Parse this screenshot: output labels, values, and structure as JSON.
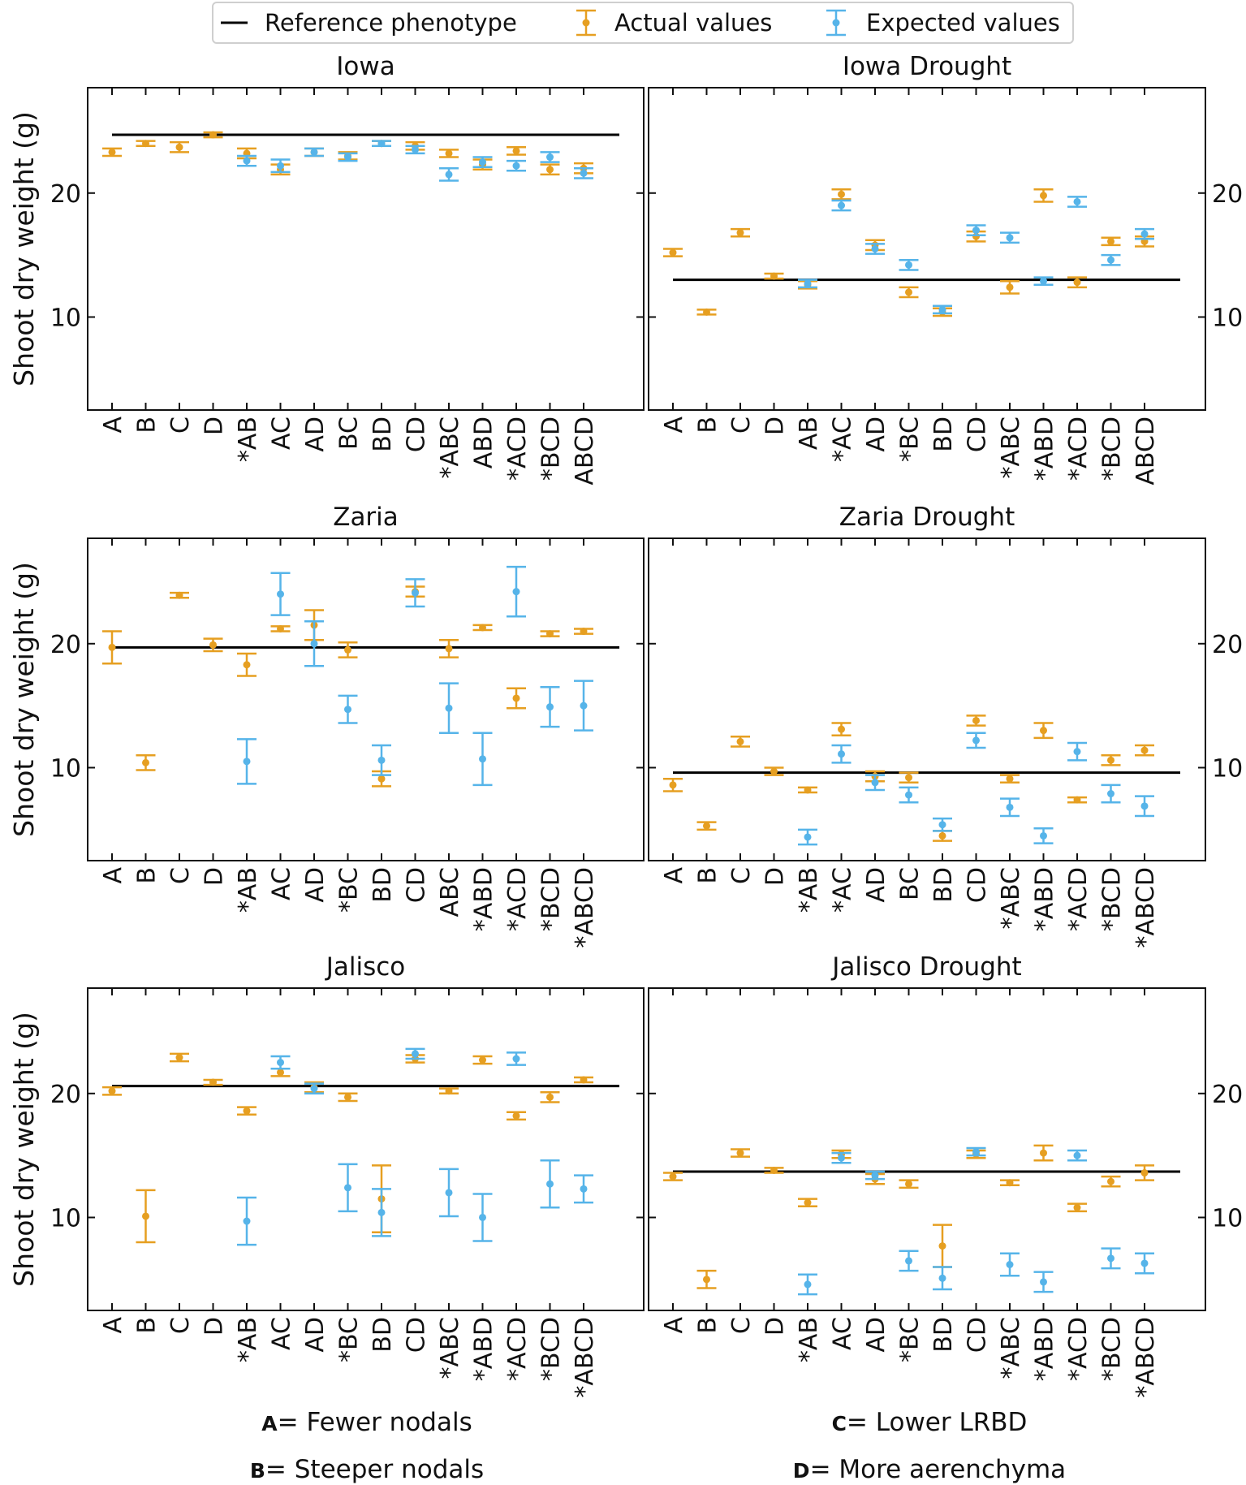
{
  "chart_data": {
    "type": "errorbar-grid",
    "ylabel": "Shoot dry weight (g)",
    "ylim": [
      2.5,
      28.5
    ],
    "yticks": [
      10,
      20
    ],
    "legend": {
      "position": "top-center",
      "items": [
        {
          "label": "Reference phenotype",
          "kind": "line",
          "color": "#000000"
        },
        {
          "label": "Actual values",
          "kind": "errorbar",
          "color": "#E69F21"
        },
        {
          "label": "Expected values",
          "kind": "errorbar",
          "color": "#56B4E9"
        }
      ]
    },
    "colors": {
      "actual": "#E69F21",
      "expected": "#56B4E9",
      "reference": "#000000"
    },
    "panels": [
      {
        "title": "Iowa",
        "reference": 24.7,
        "categories": [
          "A",
          "B",
          "C",
          "D",
          "*AB",
          "AC",
          "AD",
          "BC",
          "BD",
          "CD",
          "*ABC",
          "ABD",
          "*ACD",
          "*BCD",
          "ABCD"
        ],
        "actual": [
          [
            23.3,
            0.3
          ],
          [
            24.0,
            0.2
          ],
          [
            23.7,
            0.4
          ],
          [
            24.7,
            0.2
          ],
          [
            23.2,
            0.4
          ],
          [
            21.9,
            0.4
          ],
          [
            23.3,
            0.3
          ],
          [
            23.0,
            0.3
          ],
          [
            24.0,
            0.2
          ],
          [
            23.8,
            0.3
          ],
          [
            23.2,
            0.3
          ],
          [
            22.3,
            0.4
          ],
          [
            23.4,
            0.3
          ],
          [
            21.9,
            0.4
          ],
          [
            22.0,
            0.4
          ]
        ],
        "expected": [
          null,
          null,
          null,
          null,
          [
            22.6,
            0.4
          ],
          [
            22.2,
            0.5
          ],
          [
            23.3,
            0.3
          ],
          [
            22.9,
            0.3
          ],
          [
            24.0,
            0.2
          ],
          [
            23.5,
            0.3
          ],
          [
            21.5,
            0.5
          ],
          [
            22.5,
            0.4
          ],
          [
            22.2,
            0.4
          ],
          [
            22.9,
            0.4
          ],
          [
            21.6,
            0.4
          ]
        ]
      },
      {
        "title": "Iowa Drought",
        "reference": 13.0,
        "categories": [
          "A",
          "B",
          "C",
          "D",
          "AB",
          "*AC",
          "AD",
          "*BC",
          "BD",
          "CD",
          "*ABC",
          "*ABD",
          "*ACD",
          "*BCD",
          "ABCD"
        ],
        "actual": [
          [
            15.2,
            0.3
          ],
          [
            10.4,
            0.2
          ],
          [
            16.8,
            0.3
          ],
          [
            13.3,
            0.2
          ],
          [
            12.6,
            0.3
          ],
          [
            19.9,
            0.4
          ],
          [
            15.8,
            0.4
          ],
          [
            12.0,
            0.4
          ],
          [
            10.4,
            0.3
          ],
          [
            16.5,
            0.4
          ],
          [
            12.4,
            0.5
          ],
          [
            19.8,
            0.5
          ],
          [
            12.8,
            0.4
          ],
          [
            16.1,
            0.3
          ],
          [
            16.1,
            0.4
          ]
        ],
        "expected": [
          null,
          null,
          null,
          null,
          [
            12.7,
            0.3
          ],
          [
            19.0,
            0.4
          ],
          [
            15.5,
            0.4
          ],
          [
            14.2,
            0.4
          ],
          [
            10.6,
            0.3
          ],
          [
            17.0,
            0.4
          ],
          [
            16.4,
            0.4
          ],
          [
            12.9,
            0.3
          ],
          [
            19.3,
            0.4
          ],
          [
            14.6,
            0.4
          ],
          [
            16.7,
            0.4
          ]
        ]
      },
      {
        "title": "Zaria",
        "reference": 19.7,
        "categories": [
          "A",
          "B",
          "C",
          "D",
          "*AB",
          "AC",
          "AD",
          "*BC",
          "BD",
          "CD",
          "ABC",
          "*ABD",
          "*ACD",
          "*BCD",
          "*ABCD"
        ],
        "actual": [
          [
            19.7,
            1.3
          ],
          [
            10.4,
            0.6
          ],
          [
            23.9,
            0.2
          ],
          [
            19.9,
            0.5
          ],
          [
            18.3,
            0.9
          ],
          [
            21.2,
            0.2
          ],
          [
            21.5,
            1.2
          ],
          [
            19.5,
            0.6
          ],
          [
            9.1,
            0.6
          ],
          [
            24.2,
            0.4
          ],
          [
            19.6,
            0.7
          ],
          [
            21.3,
            0.2
          ],
          [
            15.6,
            0.8
          ],
          [
            20.8,
            0.2
          ],
          [
            21.0,
            0.2
          ]
        ],
        "expected": [
          null,
          null,
          null,
          null,
          [
            10.5,
            1.8
          ],
          [
            24.0,
            1.7
          ],
          [
            20.0,
            1.8
          ],
          [
            14.7,
            1.1
          ],
          [
            10.6,
            1.2
          ],
          [
            24.1,
            1.1
          ],
          [
            14.8,
            2.0
          ],
          [
            10.7,
            2.1
          ],
          [
            24.2,
            2.0
          ],
          [
            14.9,
            1.6
          ],
          [
            15.0,
            2.0
          ]
        ]
      },
      {
        "title": "Zaria Drought",
        "reference": 9.6,
        "categories": [
          "A",
          "B",
          "C",
          "D",
          "*AB",
          "*AC",
          "AD",
          "BC",
          "BD",
          "CD",
          "*ABC",
          "*ABD",
          "*ACD",
          "*BCD",
          "*ABCD"
        ],
        "actual": [
          [
            8.6,
            0.5
          ],
          [
            5.3,
            0.3
          ],
          [
            12.1,
            0.4
          ],
          [
            9.7,
            0.3
          ],
          [
            8.2,
            0.2
          ],
          [
            13.1,
            0.5
          ],
          [
            9.3,
            0.4
          ],
          [
            9.2,
            0.4
          ],
          [
            4.5,
            0.4
          ],
          [
            13.8,
            0.4
          ],
          [
            9.1,
            0.3
          ],
          [
            13.0,
            0.6
          ],
          [
            7.4,
            0.2
          ],
          [
            10.6,
            0.4
          ],
          [
            11.4,
            0.4
          ]
        ],
        "expected": [
          null,
          null,
          null,
          null,
          [
            4.4,
            0.6
          ],
          [
            11.1,
            0.7
          ],
          [
            8.8,
            0.6
          ],
          [
            7.8,
            0.6
          ],
          [
            5.4,
            0.5
          ],
          [
            12.2,
            0.6
          ],
          [
            6.8,
            0.7
          ],
          [
            4.5,
            0.6
          ],
          [
            11.3,
            0.7
          ],
          [
            7.9,
            0.7
          ],
          [
            6.9,
            0.8
          ]
        ]
      },
      {
        "title": "Jalisco",
        "reference": 20.6,
        "categories": [
          "A",
          "B",
          "C",
          "D",
          "*AB",
          "AC",
          "AD",
          "*BC",
          "BD",
          "CD",
          "*ABC",
          "*ABD",
          "*ACD",
          "*BCD",
          "*ABCD"
        ],
        "actual": [
          [
            20.2,
            0.3
          ],
          [
            10.1,
            2.1
          ],
          [
            22.9,
            0.3
          ],
          [
            20.9,
            0.2
          ],
          [
            18.6,
            0.3
          ],
          [
            21.7,
            0.3
          ],
          [
            20.5,
            0.4
          ],
          [
            19.7,
            0.3
          ],
          [
            11.5,
            2.7
          ],
          [
            22.8,
            0.3
          ],
          [
            20.2,
            0.2
          ],
          [
            22.7,
            0.3
          ],
          [
            18.2,
            0.3
          ],
          [
            19.7,
            0.4
          ],
          [
            21.1,
            0.2
          ]
        ],
        "expected": [
          null,
          null,
          null,
          null,
          [
            9.7,
            1.9
          ],
          [
            22.5,
            0.5
          ],
          [
            20.4,
            0.4
          ],
          [
            12.4,
            1.9
          ],
          [
            10.4,
            1.9
          ],
          [
            23.2,
            0.4
          ],
          [
            12.0,
            1.9
          ],
          [
            10.0,
            1.9
          ],
          [
            22.8,
            0.5
          ],
          [
            12.7,
            1.9
          ],
          [
            12.3,
            1.1
          ]
        ]
      },
      {
        "title": "Jalisco Drought",
        "reference": 13.7,
        "categories": [
          "A",
          "B",
          "C",
          "D",
          "*AB",
          "AC",
          "AD",
          "*BC",
          "BD",
          "CD",
          "*ABC",
          "*ABD",
          "*ACD",
          "*BCD",
          "*ABCD"
        ],
        "actual": [
          [
            13.3,
            0.3
          ],
          [
            5.0,
            0.7
          ],
          [
            15.2,
            0.3
          ],
          [
            13.8,
            0.2
          ],
          [
            11.2,
            0.3
          ],
          [
            15.1,
            0.3
          ],
          [
            13.1,
            0.4
          ],
          [
            12.7,
            0.3
          ],
          [
            7.7,
            1.7
          ],
          [
            15.1,
            0.3
          ],
          [
            12.8,
            0.2
          ],
          [
            15.2,
            0.6
          ],
          [
            10.8,
            0.3
          ],
          [
            12.9,
            0.4
          ],
          [
            13.6,
            0.6
          ]
        ],
        "expected": [
          null,
          null,
          null,
          null,
          [
            4.6,
            0.8
          ],
          [
            14.8,
            0.4
          ],
          [
            13.4,
            0.3
          ],
          [
            6.5,
            0.8
          ],
          [
            5.1,
            0.9
          ],
          [
            15.3,
            0.3
          ],
          [
            6.2,
            0.9
          ],
          [
            4.8,
            0.8
          ],
          [
            15.0,
            0.4
          ],
          [
            6.7,
            0.8
          ],
          [
            6.3,
            0.8
          ]
        ]
      }
    ],
    "key": [
      {
        "letter": "A",
        "text": "= Fewer nodals"
      },
      {
        "letter": "C",
        "text": "= Lower LRBD"
      },
      {
        "letter": "B",
        "text": "= Steeper nodals"
      },
      {
        "letter": "D",
        "text": "= More aerenchyma"
      }
    ]
  }
}
